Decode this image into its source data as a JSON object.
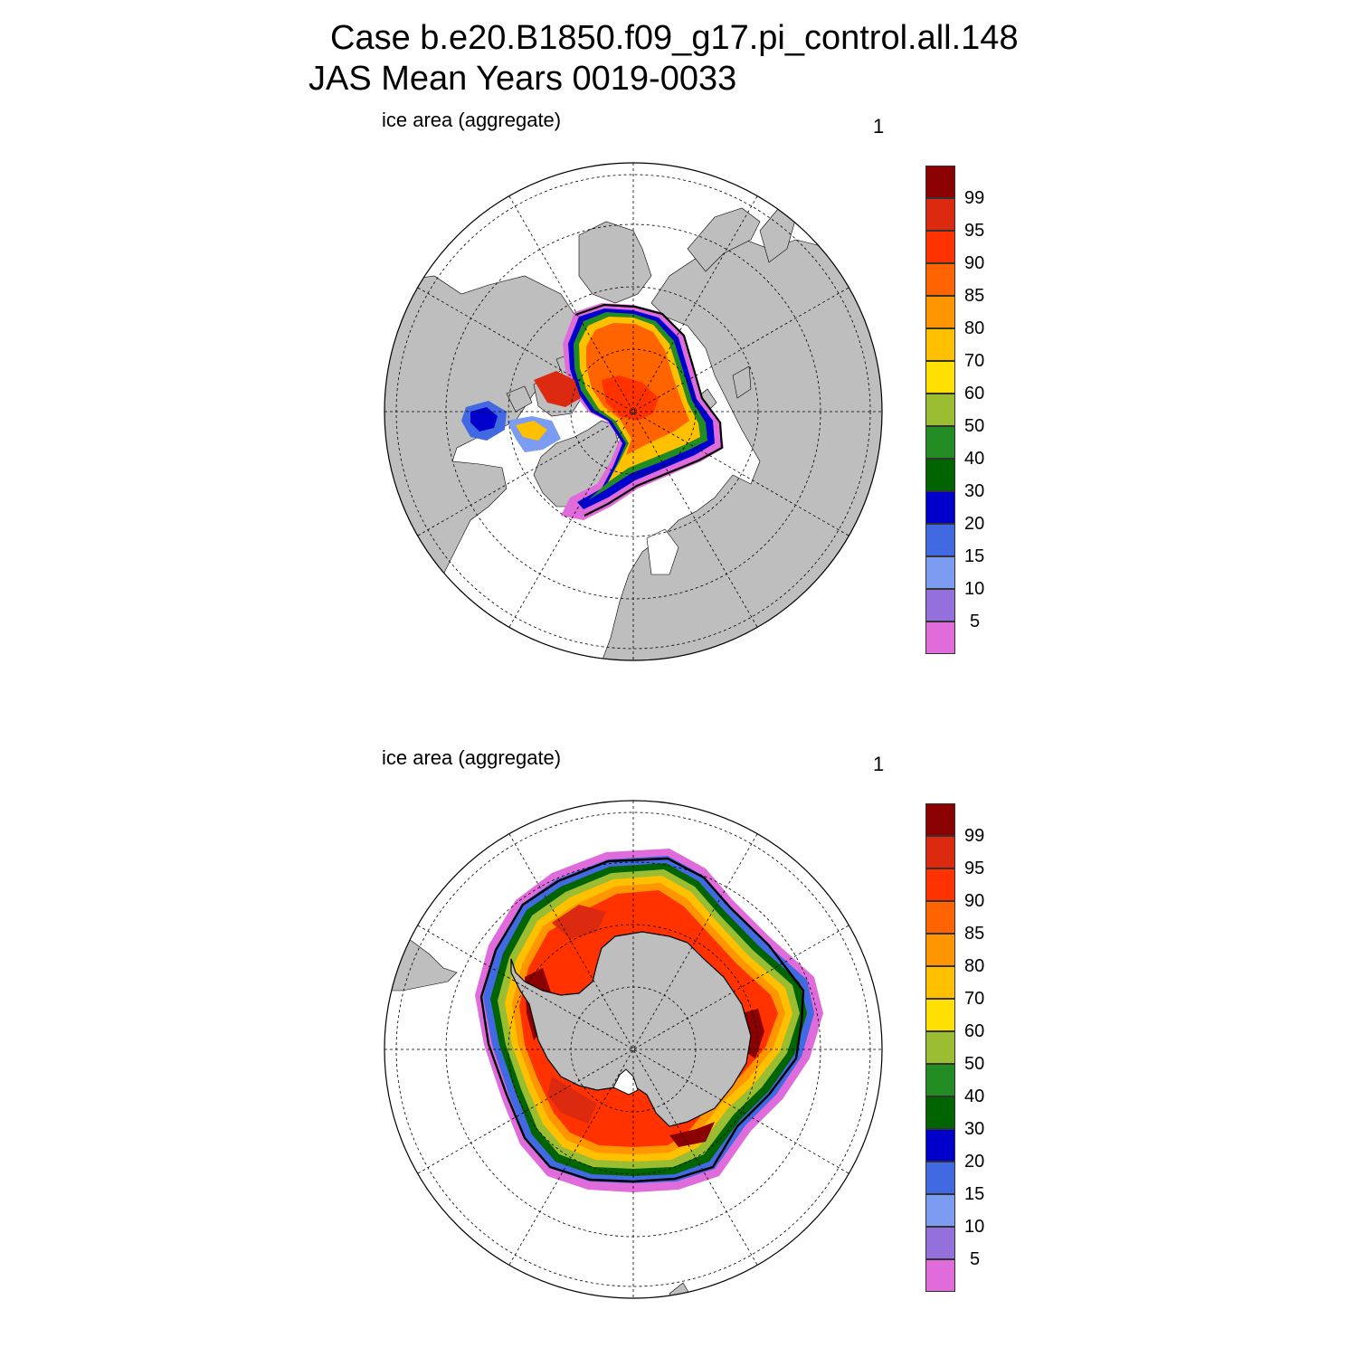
{
  "title": {
    "line1": "Case b.e20.B1850.f09_g17.pi_control.all.148",
    "line2": "JAS Mean   Years 0019-0033"
  },
  "colors": {
    "land": "#bebebe",
    "ocean": "#ffffff",
    "levels": [
      "#e06cdb",
      "#9370db",
      "#7b9cf0",
      "#4169e1",
      "#0000cd",
      "#006400",
      "#228b22",
      "#9abd32",
      "#ffe000",
      "#ffc000",
      "#ff9600",
      "#ff6400",
      "#ff3200",
      "#dc2a10",
      "#8b0000"
    ]
  },
  "panels": [
    {
      "id": "north",
      "variable_label": "ice area  (aggregate)",
      "units_label": "1",
      "colorbar": {
        "tick_labels": [
          "5",
          "10",
          "15",
          "20",
          "30",
          "40",
          "50",
          "60",
          "70",
          "80",
          "85",
          "90",
          "95",
          "99"
        ]
      }
    },
    {
      "id": "south",
      "variable_label": "ice area  (aggregate)",
      "units_label": "1",
      "colorbar": {
        "tick_labels": [
          "5",
          "10",
          "15",
          "20",
          "30",
          "40",
          "50",
          "60",
          "70",
          "80",
          "85",
          "90",
          "95",
          "99"
        ]
      }
    }
  ]
}
